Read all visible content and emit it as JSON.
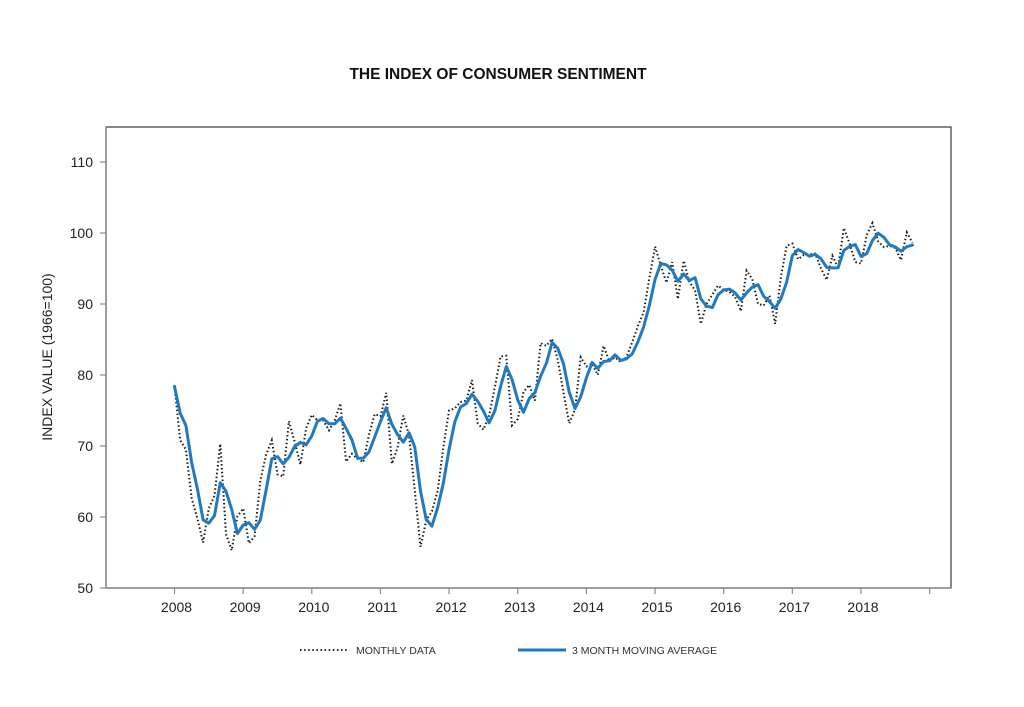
{
  "chart_data": {
    "type": "line",
    "title": "THE INDEX OF CONSUMER SENTIMENT",
    "xlabel": "",
    "ylabel": "INDEX VALUE (1966=100)",
    "ylim": [
      50,
      110
    ],
    "xlim": [
      2007.5,
      2019.0
    ],
    "yticks": [
      50,
      60,
      70,
      80,
      90,
      100,
      110
    ],
    "xticks": [
      2008,
      2009,
      2010,
      2011,
      2012,
      2013,
      2014,
      2015,
      2016,
      2017,
      2018
    ],
    "x_tick_marks_extra": [
      2019
    ],
    "grid": false,
    "legend_position": "bottom-center",
    "x_start": "2008-01",
    "x_frequency": "monthly",
    "series": [
      {
        "name": "MONTHLY DATA",
        "style": "dotted",
        "color": "#222222",
        "values": [
          78.4,
          70.8,
          69.5,
          62.6,
          59.8,
          56.4,
          61.2,
          63.0,
          70.3,
          57.6,
          55.3,
          60.1,
          61.2,
          56.3,
          57.3,
          65.1,
          68.7,
          70.8,
          66.0,
          65.7,
          73.5,
          70.6,
          67.4,
          72.5,
          74.4,
          73.6,
          73.6,
          72.2,
          73.6,
          76.0,
          67.8,
          68.9,
          68.2,
          67.7,
          71.6,
          74.5,
          74.2,
          77.5,
          67.5,
          69.8,
          74.3,
          71.5,
          63.7,
          55.8,
          59.5,
          60.8,
          63.7,
          69.9,
          75.0,
          75.3,
          76.2,
          76.4,
          79.3,
          73.2,
          72.3,
          74.3,
          78.3,
          82.6,
          82.7,
          72.9,
          73.8,
          77.6,
          78.6,
          76.4,
          84.5,
          84.1,
          85.1,
          82.1,
          77.5,
          73.2,
          75.1,
          82.5,
          81.2,
          81.6,
          80.0,
          84.1,
          81.9,
          82.5,
          81.8,
          82.5,
          84.6,
          86.9,
          88.8,
          93.6,
          98.1,
          95.4,
          93.0,
          95.9,
          90.7,
          96.1,
          93.1,
          91.9,
          87.2,
          90.0,
          91.3,
          92.6,
          92.0,
          91.7,
          91.0,
          89.0,
          94.7,
          93.5,
          90.0,
          89.8,
          91.2,
          87.2,
          93.8,
          98.2,
          98.5,
          96.3,
          96.9,
          97.0,
          97.1,
          95.0,
          93.4,
          96.8,
          95.1,
          100.7,
          98.5,
          95.9,
          95.7,
          99.7,
          101.4,
          98.8,
          98.0,
          98.2,
          97.9,
          96.2,
          100.1,
          98.6
        ]
      },
      {
        "name": "3 MONTH MOVING AVERAGE",
        "style": "solid",
        "color": "#1f7ac2",
        "method": "trailing 3-month mean of MONTHLY DATA"
      }
    ]
  },
  "legend": {
    "items": [
      {
        "label": "MONTHLY DATA"
      },
      {
        "label": "3 MONTH MOVING AVERAGE"
      }
    ]
  }
}
